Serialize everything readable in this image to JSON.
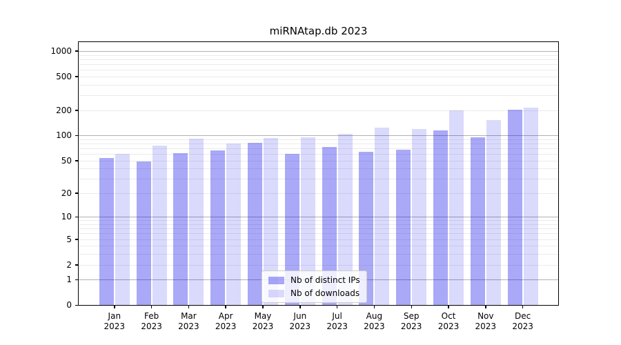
{
  "chart_data": {
    "type": "bar",
    "title": "miRNAtap.db 2023",
    "categories": [
      "Jan 2023",
      "Feb 2023",
      "Mar 2023",
      "Apr 2023",
      "May 2023",
      "Jun 2023",
      "Jul 2023",
      "Aug 2023",
      "Sep 2023",
      "Oct 2023",
      "Nov 2023",
      "Dec 2023"
    ],
    "series": [
      {
        "name": "Nb of distinct IPs",
        "color": "rgba(8,8,235,0.35)",
        "values": [
          54,
          49,
          61,
          66,
          82,
          60,
          73,
          64,
          67,
          114,
          94,
          201
        ]
      },
      {
        "name": "Nb of downloads",
        "color": "rgba(8,8,235,0.15)",
        "values": [
          60,
          76,
          91,
          80,
          93,
          95,
          105,
          124,
          119,
          199,
          152,
          215
        ]
      }
    ],
    "yscale": "log1p",
    "ylim": [
      0,
      1275
    ],
    "yticks": [
      0,
      1,
      2,
      5,
      10,
      20,
      50,
      100,
      200,
      500,
      1000
    ],
    "major_gridlines": [
      1,
      10,
      100,
      1000
    ],
    "minor_gridline_decades": [
      1,
      10,
      100
    ],
    "grid": "on",
    "legend_position": "lower center",
    "colors": {
      "major_grid": "#b0b0b0",
      "minor_grid": "#ebebeb",
      "axis": "#000000",
      "text": "#000000",
      "plot_background": "#ffffff"
    }
  }
}
